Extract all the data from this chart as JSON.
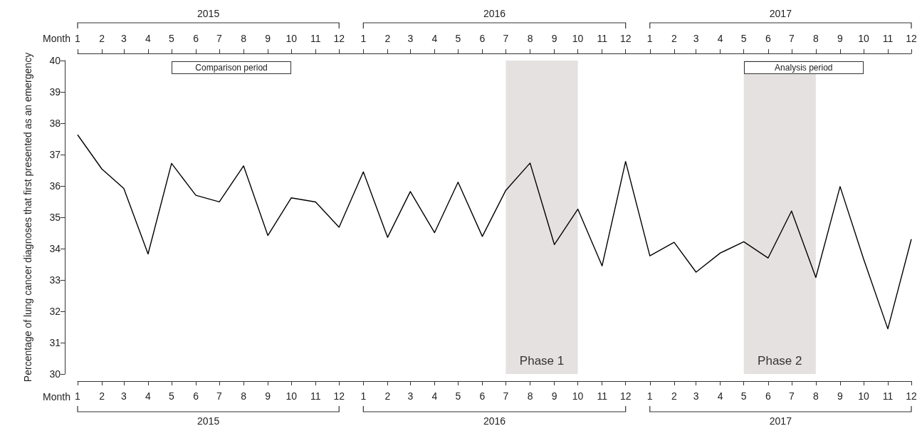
{
  "chart_data": {
    "type": "line",
    "ylabel": "Percentage of lung cancer diagnoses that first presented as an emergency",
    "xlabel": "Month",
    "x2label": "Month",
    "x": [
      "2015-01",
      "2015-02",
      "2015-03",
      "2015-04",
      "2015-05",
      "2015-06",
      "2015-07",
      "2015-08",
      "2015-09",
      "2015-10",
      "2015-11",
      "2015-12",
      "2016-01",
      "2016-02",
      "2016-03",
      "2016-04",
      "2016-05",
      "2016-06",
      "2016-07",
      "2016-08",
      "2016-09",
      "2016-10",
      "2016-11",
      "2016-12",
      "2017-01",
      "2017-02",
      "2017-03",
      "2017-04",
      "2017-05",
      "2017-06",
      "2017-07",
      "2017-08",
      "2017-09",
      "2017-10",
      "2017-11",
      "2017-12"
    ],
    "series": [
      {
        "color": "#000000",
        "values": [
          37.63,
          36.54,
          35.92,
          33.83,
          36.72,
          35.7,
          35.49,
          36.64,
          34.42,
          35.62,
          35.49,
          34.68,
          36.45,
          34.36,
          35.82,
          34.51,
          36.12,
          34.39,
          35.86,
          36.73,
          34.13,
          35.26,
          33.45,
          36.78,
          33.77,
          34.2,
          33.25,
          33.86,
          34.22,
          33.7,
          35.2,
          33.08,
          35.98,
          33.67,
          31.44,
          34.3
        ]
      }
    ],
    "xlim": [
      "2015-01",
      "2017-12"
    ],
    "xticks": [
      {
        "value": "2015-01",
        "label": "1"
      },
      {
        "value": "2015-02",
        "label": "2"
      },
      {
        "value": "2015-03",
        "label": "3"
      },
      {
        "value": "2015-04",
        "label": "4"
      },
      {
        "value": "2015-05",
        "label": "5"
      },
      {
        "value": "2015-06",
        "label": "6"
      },
      {
        "value": "2015-07",
        "label": "7"
      },
      {
        "value": "2015-08",
        "label": "8"
      },
      {
        "value": "2015-09",
        "label": "9"
      },
      {
        "value": "2015-10",
        "label": "10"
      },
      {
        "value": "2015-11",
        "label": "11"
      },
      {
        "value": "2015-12",
        "label": "12"
      },
      {
        "value": "2016-01",
        "label": "1"
      },
      {
        "value": "2016-02",
        "label": "2"
      },
      {
        "value": "2016-03",
        "label": "3"
      },
      {
        "value": "2016-04",
        "label": "4"
      },
      {
        "value": "2016-05",
        "label": "5"
      },
      {
        "value": "2016-06",
        "label": "6"
      },
      {
        "value": "2016-07",
        "label": "7"
      },
      {
        "value": "2016-08",
        "label": "8"
      },
      {
        "value": "2016-09",
        "label": "9"
      },
      {
        "value": "2016-10",
        "label": "10"
      },
      {
        "value": "2016-11",
        "label": "11"
      },
      {
        "value": "2016-12",
        "label": "12"
      },
      {
        "value": "2017-01",
        "label": "1"
      },
      {
        "value": "2017-02",
        "label": "2"
      },
      {
        "value": "2017-03",
        "label": "3"
      },
      {
        "value": "2017-04",
        "label": "4"
      },
      {
        "value": "2017-05",
        "label": "5"
      },
      {
        "value": "2017-06",
        "label": "6"
      },
      {
        "value": "2017-07",
        "label": "7"
      },
      {
        "value": "2017-08",
        "label": "8"
      },
      {
        "value": "2017-09",
        "label": "9"
      },
      {
        "value": "2017-10",
        "label": "10"
      },
      {
        "value": "2017-11",
        "label": "11"
      },
      {
        "value": "2017-12",
        "label": "12"
      }
    ],
    "x2lim": [
      "2015-01",
      "2017-12"
    ],
    "x2ticks": [
      {
        "value": "2015-01",
        "label": "1"
      },
      {
        "value": "2015-02",
        "label": "2"
      },
      {
        "value": "2015-03",
        "label": "3"
      },
      {
        "value": "2015-04",
        "label": "4"
      },
      {
        "value": "2015-05",
        "label": "5"
      },
      {
        "value": "2015-06",
        "label": "6"
      },
      {
        "value": "2015-07",
        "label": "7"
      },
      {
        "value": "2015-08",
        "label": "8"
      },
      {
        "value": "2015-09",
        "label": "9"
      },
      {
        "value": "2015-10",
        "label": "10"
      },
      {
        "value": "2015-11",
        "label": "11"
      },
      {
        "value": "2015-12",
        "label": "12"
      },
      {
        "value": "2016-01",
        "label": "1"
      },
      {
        "value": "2016-02",
        "label": "2"
      },
      {
        "value": "2016-03",
        "label": "3"
      },
      {
        "value": "2016-04",
        "label": "4"
      },
      {
        "value": "2016-05",
        "label": "5"
      },
      {
        "value": "2016-06",
        "label": "6"
      },
      {
        "value": "2016-07",
        "label": "7"
      },
      {
        "value": "2016-08",
        "label": "8"
      },
      {
        "value": "2016-09",
        "label": "9"
      },
      {
        "value": "2016-10",
        "label": "10"
      },
      {
        "value": "2016-11",
        "label": "11"
      },
      {
        "value": "2016-12",
        "label": "12"
      },
      {
        "value": "2017-01",
        "label": "1"
      },
      {
        "value": "2017-02",
        "label": "2"
      },
      {
        "value": "2017-03",
        "label": "3"
      },
      {
        "value": "2017-04",
        "label": "4"
      },
      {
        "value": "2017-05",
        "label": "5"
      },
      {
        "value": "2017-06",
        "label": "6"
      },
      {
        "value": "2017-07",
        "label": "7"
      },
      {
        "value": "2017-08",
        "label": "8"
      },
      {
        "value": "2017-09",
        "label": "9"
      },
      {
        "value": "2017-10",
        "label": "10"
      },
      {
        "value": "2017-11",
        "label": "11"
      },
      {
        "value": "2017-12",
        "label": "12"
      }
    ],
    "ylim": [
      30,
      40
    ],
    "yticks": [
      30,
      31,
      32,
      33,
      34,
      35,
      36,
      37,
      38,
      39,
      40
    ],
    "bands": [
      {
        "axis": "x",
        "from": "2016-07",
        "to": "2016-10",
        "label": "Phase 1",
        "color": "#e6e1e1"
      },
      {
        "axis": "x",
        "from": "2017-05",
        "to": "2017-08",
        "label": "Phase 2",
        "color": "#e6e1e1"
      }
    ],
    "annotations": [
      "2015",
      "2016",
      "2017",
      "Comparison period",
      "Analysis period"
    ],
    "grid": false,
    "marker": "none",
    "line_style": "solid"
  }
}
